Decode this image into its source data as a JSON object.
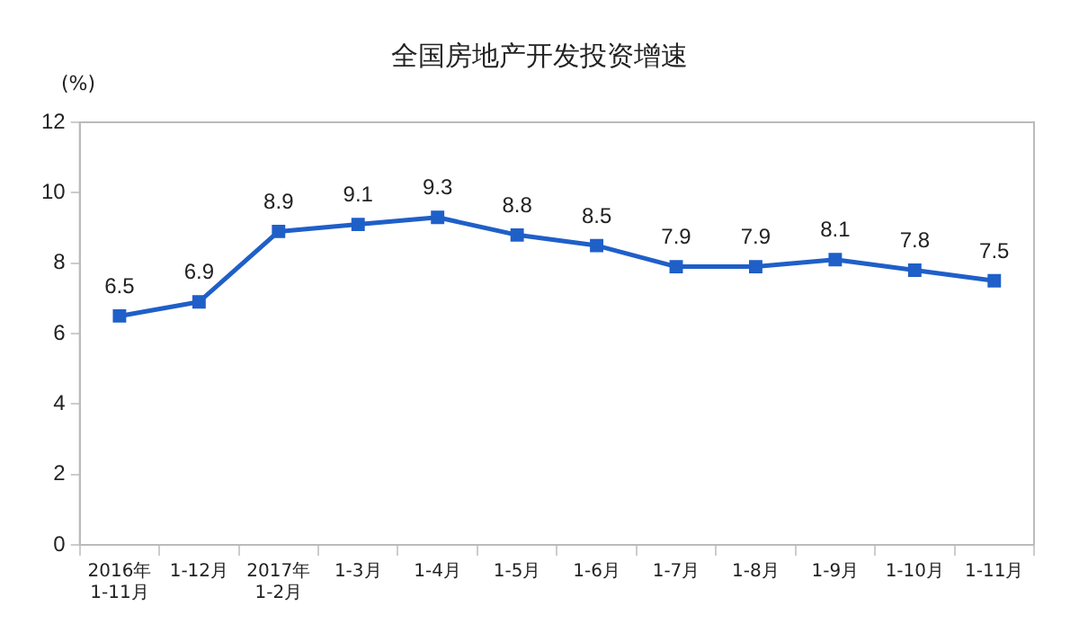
{
  "chart_data": {
    "type": "line",
    "title": "全国房地产开发投资增速",
    "ylabel": "(%)",
    "categories": [
      "2016年\n1-11月",
      "1-12月",
      "2017年\n1-2月",
      "1-3月",
      "1-4月",
      "1-5月",
      "1-6月",
      "1-7月",
      "1-8月",
      "1-9月",
      "1-10月",
      "1-11月"
    ],
    "series": [
      {
        "color": "#1f5fc8",
        "values": [
          6.5,
          6.9,
          8.9,
          9.1,
          9.3,
          8.8,
          8.5,
          7.9,
          7.9,
          8.1,
          7.8,
          7.5
        ]
      }
    ],
    "ylim": [
      0,
      12
    ],
    "yticks": [
      0,
      2,
      4,
      6,
      8,
      10,
      12
    ],
    "grid": false,
    "legend": false,
    "marker": "square",
    "data_labels": true
  }
}
